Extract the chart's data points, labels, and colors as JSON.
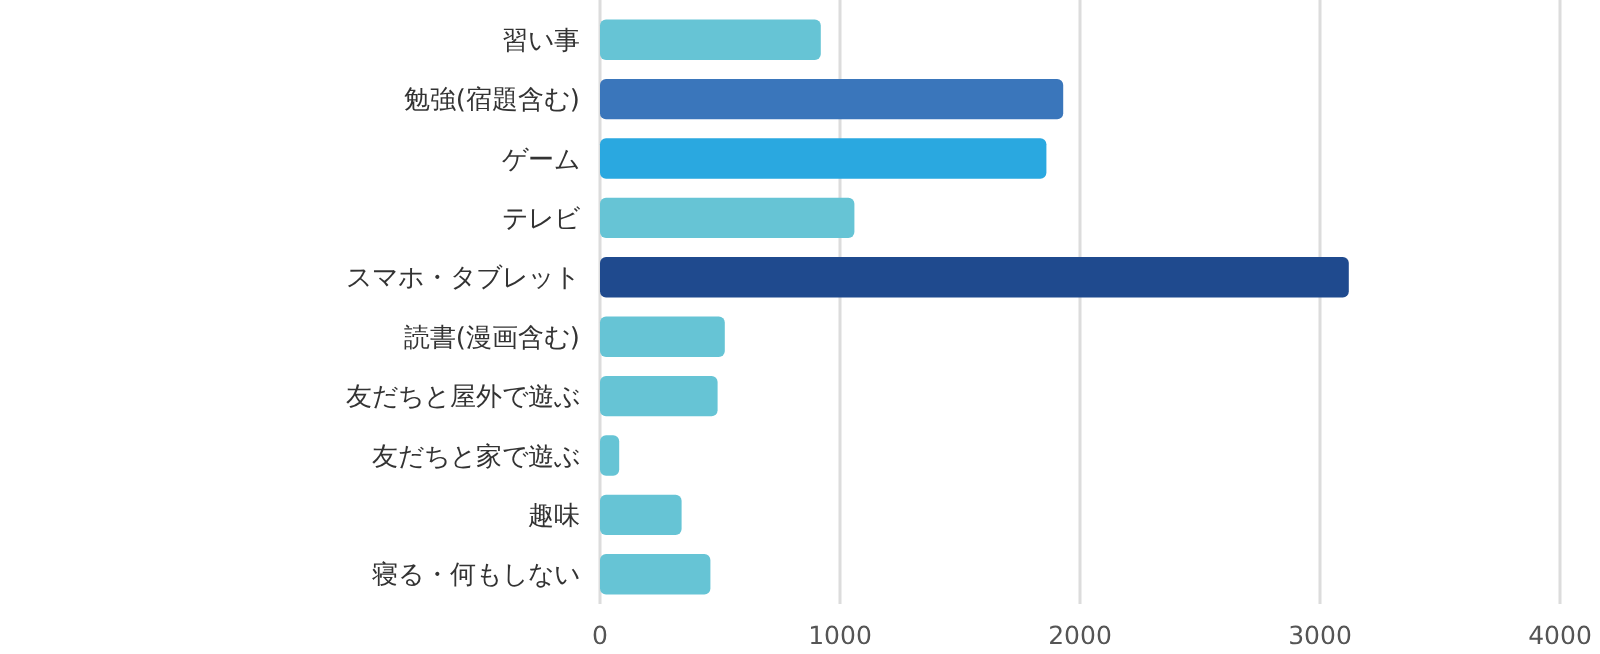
{
  "chart_data": {
    "type": "bar",
    "orientation": "horizontal",
    "categories": [
      "習い事",
      "勉強(宿題含む)",
      "ゲーム",
      "テレビ",
      "スマホ・タブレット",
      "読書(漫画含む)",
      "友だちと屋外で遊ぶ",
      "友だちと家で遊ぶ",
      "趣味",
      "寝る・何もしない"
    ],
    "values": [
      920,
      1930,
      1860,
      1060,
      3120,
      520,
      490,
      80,
      340,
      460
    ],
    "colors": [
      "#66c4d5",
      "#3a76bb",
      "#2aa8e0",
      "#66c4d5",
      "#1f4a8e",
      "#66c4d5",
      "#66c4d5",
      "#66c4d5",
      "#66c4d5",
      "#66c4d5"
    ],
    "xlim": [
      0,
      4000
    ],
    "xticks": [
      0,
      1000,
      2000,
      3000,
      4000
    ],
    "grid": "x"
  }
}
